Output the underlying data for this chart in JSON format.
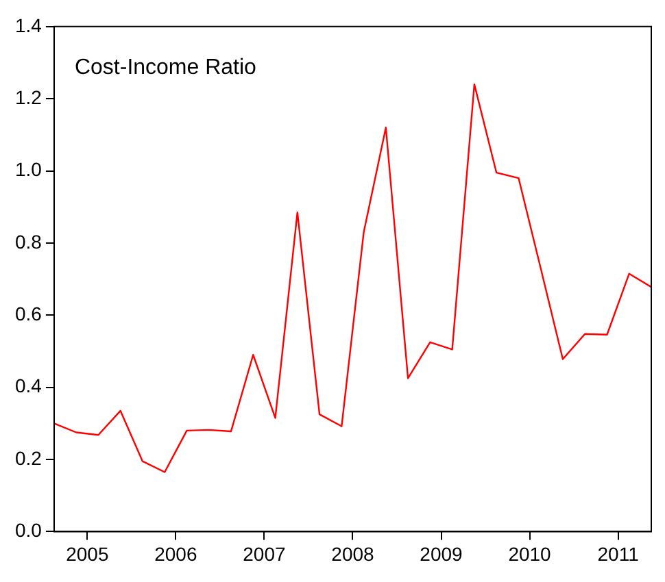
{
  "chart_data": {
    "type": "line",
    "title": "Cost-Income Ratio",
    "x": [
      2005,
      2005.25,
      2005.5,
      2005.75,
      2006,
      2006.25,
      2006.5,
      2006.75,
      2007,
      2007.25,
      2007.5,
      2007.75,
      2008,
      2008.25,
      2008.5,
      2008.75,
      2009,
      2009.25,
      2009.5,
      2009.75,
      2010,
      2010.25,
      2010.5,
      2010.75,
      2011,
      2011.25,
      2011.5,
      2011.75
    ],
    "series": [
      {
        "color": "#ff0000",
        "values": [
          0.3,
          0.275,
          0.268,
          0.335,
          0.195,
          0.165,
          0.28,
          0.282,
          0.278,
          0.49,
          0.315,
          0.885,
          0.325,
          0.292,
          0.83,
          1.12,
          0.425,
          0.525,
          0.505,
          1.24,
          0.995,
          0.98,
          0.73,
          0.478,
          0.548,
          0.546,
          0.715,
          0.678
        ]
      }
    ],
    "xlim": [
      2005,
      2011.75
    ],
    "xticks": [
      {
        "value": 2005.375,
        "label": "2005"
      },
      {
        "value": 2006.375,
        "label": "2006"
      },
      {
        "value": 2007.375,
        "label": "2007"
      },
      {
        "value": 2008.375,
        "label": "2008"
      },
      {
        "value": 2009.375,
        "label": "2009"
      },
      {
        "value": 2010.375,
        "label": "2010"
      },
      {
        "value": 2011.375,
        "label": "2011"
      }
    ],
    "ylim": [
      0,
      1.4
    ],
    "yticks": [
      {
        "value": 0,
        "label": "0.0"
      },
      {
        "value": 0.2,
        "label": "0.2"
      },
      {
        "value": 0.4,
        "label": "0.4"
      },
      {
        "value": 0.6,
        "label": "0.6"
      },
      {
        "value": 0.8,
        "label": "0.8"
      },
      {
        "value": 1.0,
        "label": "1.0"
      },
      {
        "value": 1.2,
        "label": "1.2"
      },
      {
        "value": 1.4,
        "label": "1.4"
      }
    ],
    "grid": false,
    "legend": false,
    "marker": "none",
    "line_style": "solid"
  }
}
